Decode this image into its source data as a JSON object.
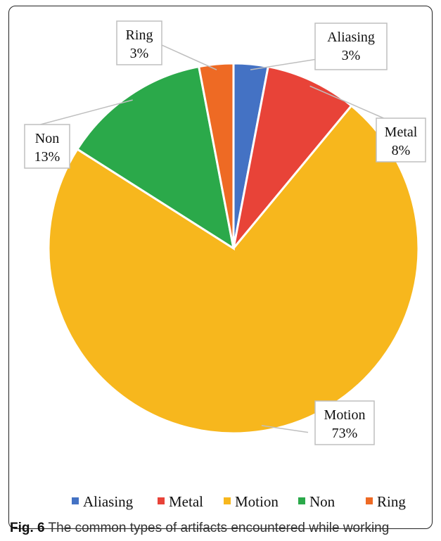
{
  "chart_data": {
    "type": "pie",
    "slices": [
      {
        "label": "Aliasing",
        "value": 3,
        "value_label": "3%",
        "color": "#4472C4"
      },
      {
        "label": "Metal",
        "value": 8,
        "value_label": "8%",
        "color": "#E84338"
      },
      {
        "label": "Motion",
        "value": 73,
        "value_label": "73%",
        "color": "#F7B71D"
      },
      {
        "label": "Non",
        "value": 13,
        "value_label": "13%",
        "color": "#2BA94A"
      },
      {
        "label": "Ring",
        "value": 3,
        "value_label": "3%",
        "color": "#EE6A24"
      }
    ],
    "legend_position": "bottom"
  },
  "caption": {
    "fig_label": "Fig. 6",
    "text": " The common types of artifacts encountered while working"
  }
}
